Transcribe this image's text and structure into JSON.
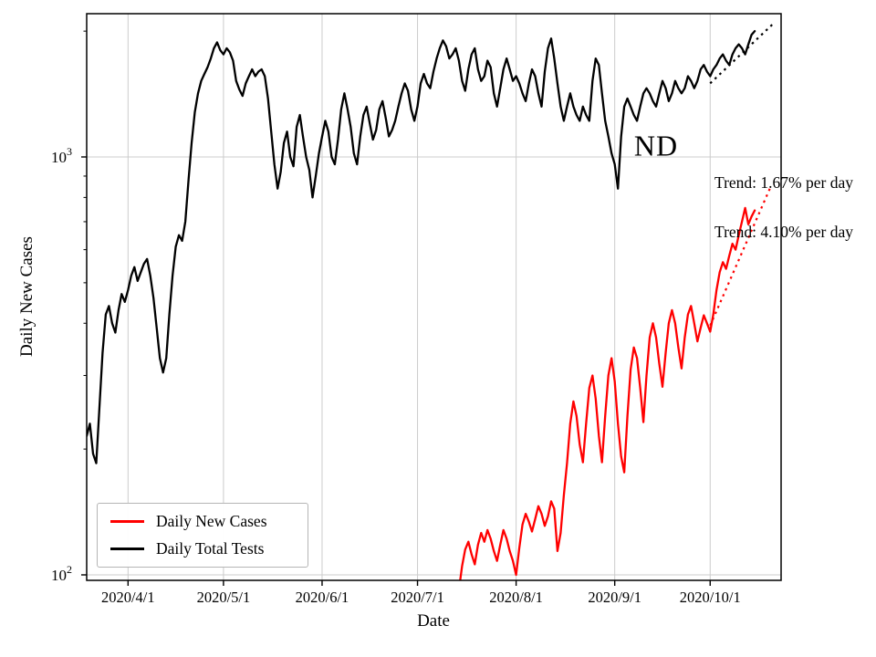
{
  "chart_data": {
    "type": "line",
    "title": "",
    "xlabel": "Date",
    "ylabel": "Daily New Cases",
    "yscale": "log",
    "ylim": [
      97,
      2200
    ],
    "grid": true,
    "x_start_date": "2020/3/19",
    "x_ticks": [
      {
        "day": 13,
        "label": "2020/4/1"
      },
      {
        "day": 43,
        "label": "2020/5/1"
      },
      {
        "day": 74,
        "label": "2020/6/1"
      },
      {
        "day": 104,
        "label": "2020/7/1"
      },
      {
        "day": 135,
        "label": "2020/8/1"
      },
      {
        "day": 166,
        "label": "2020/9/1"
      },
      {
        "day": 196,
        "label": "2020/10/1"
      }
    ],
    "y_ticks": [
      {
        "base": "10",
        "exp": "2",
        "value": 100
      },
      {
        "base": "10",
        "exp": "3",
        "value": 1000
      }
    ],
    "y_minor_ticks": [
      200,
      300,
      400,
      500,
      600,
      700,
      800,
      900,
      2000
    ],
    "legend": {
      "position": "lower-left",
      "entries": [
        {
          "label": "Daily New Cases",
          "color": "#ff0000"
        },
        {
          "label": "Daily Total Tests",
          "color": "#000000"
        }
      ]
    },
    "annotations": [
      {
        "text": "ND"
      },
      {
        "text": "Trend: 1.67% per day"
      },
      {
        "text": "Trend: 4.10% per day"
      }
    ],
    "series": [
      {
        "name": "Daily Total Tests",
        "color": "#000000",
        "start_day": 0,
        "start_date": "2020/3/19",
        "values": [
          215,
          230,
          195,
          185,
          250,
          340,
          420,
          440,
          400,
          380,
          430,
          470,
          450,
          480,
          520,
          545,
          505,
          530,
          555,
          570,
          520,
          460,
          390,
          330,
          305,
          330,
          420,
          520,
          610,
          650,
          630,
          700,
          880,
          1080,
          1280,
          1420,
          1520,
          1580,
          1640,
          1720,
          1820,
          1880,
          1800,
          1760,
          1820,
          1780,
          1700,
          1520,
          1450,
          1400,
          1500,
          1560,
          1620,
          1560,
          1600,
          1620,
          1560,
          1380,
          1150,
          960,
          840,
          920,
          1080,
          1150,
          1000,
          950,
          1180,
          1260,
          1120,
          1000,
          930,
          800,
          900,
          1020,
          1120,
          1220,
          1150,
          1000,
          960,
          1100,
          1300,
          1420,
          1300,
          1180,
          1020,
          960,
          1120,
          1260,
          1320,
          1200,
          1100,
          1160,
          1300,
          1360,
          1240,
          1120,
          1160,
          1220,
          1320,
          1420,
          1500,
          1440,
          1300,
          1220,
          1320,
          1500,
          1580,
          1500,
          1460,
          1600,
          1720,
          1820,
          1900,
          1840,
          1720,
          1760,
          1820,
          1700,
          1520,
          1440,
          1620,
          1760,
          1820,
          1620,
          1520,
          1560,
          1700,
          1640,
          1420,
          1320,
          1460,
          1620,
          1720,
          1620,
          1520,
          1560,
          1500,
          1420,
          1360,
          1500,
          1620,
          1560,
          1420,
          1320,
          1600,
          1820,
          1920,
          1720,
          1500,
          1320,
          1220,
          1320,
          1420,
          1320,
          1260,
          1220,
          1320,
          1260,
          1220,
          1520,
          1720,
          1660,
          1420,
          1220,
          1120,
          1020,
          960,
          840,
          1120,
          1320,
          1380,
          1320,
          1260,
          1220,
          1320,
          1420,
          1460,
          1420,
          1360,
          1320,
          1420,
          1520,
          1460,
          1360,
          1420,
          1520,
          1460,
          1420,
          1460,
          1560,
          1520,
          1460,
          1520,
          1620,
          1660,
          1600,
          1560,
          1620,
          1660,
          1720,
          1760,
          1700,
          1660,
          1760,
          1820,
          1860,
          1820,
          1760,
          1860,
          1960,
          2000
        ]
      },
      {
        "name": "Daily New Cases",
        "color": "#ff0000",
        "start_day": 117,
        "start_date": "2020/7/14",
        "values": [
          92,
          105,
          115,
          120,
          112,
          106,
          118,
          126,
          120,
          128,
          122,
          114,
          108,
          118,
          128,
          122,
          114,
          108,
          100,
          116,
          132,
          140,
          134,
          127,
          136,
          146,
          140,
          131,
          138,
          150,
          144,
          114,
          126,
          155,
          185,
          230,
          260,
          240,
          205,
          186,
          230,
          280,
          300,
          264,
          215,
          186,
          240,
          300,
          330,
          290,
          230,
          192,
          176,
          240,
          310,
          350,
          330,
          280,
          232,
          300,
          370,
          400,
          370,
          320,
          282,
          340,
          400,
          430,
          400,
          350,
          312,
          370,
          420,
          440,
          400,
          362,
          390,
          418,
          400,
          382,
          420,
          480,
          530,
          560,
          540,
          580,
          620,
          600,
          650,
          700,
          755,
          690,
          720,
          745
        ]
      }
    ],
    "trend_lines": [
      {
        "series": "Daily Total Tests",
        "pct_per_day": 1.67,
        "color": "#000000",
        "start_day": 196,
        "start_value": 1500,
        "end_day": 216,
        "end_value": 2090
      },
      {
        "series": "Daily New Cases",
        "pct_per_day": 4.1,
        "color": "#ff0000",
        "start_day": 196,
        "start_value": 395,
        "end_day": 215,
        "end_value": 848
      }
    ]
  }
}
